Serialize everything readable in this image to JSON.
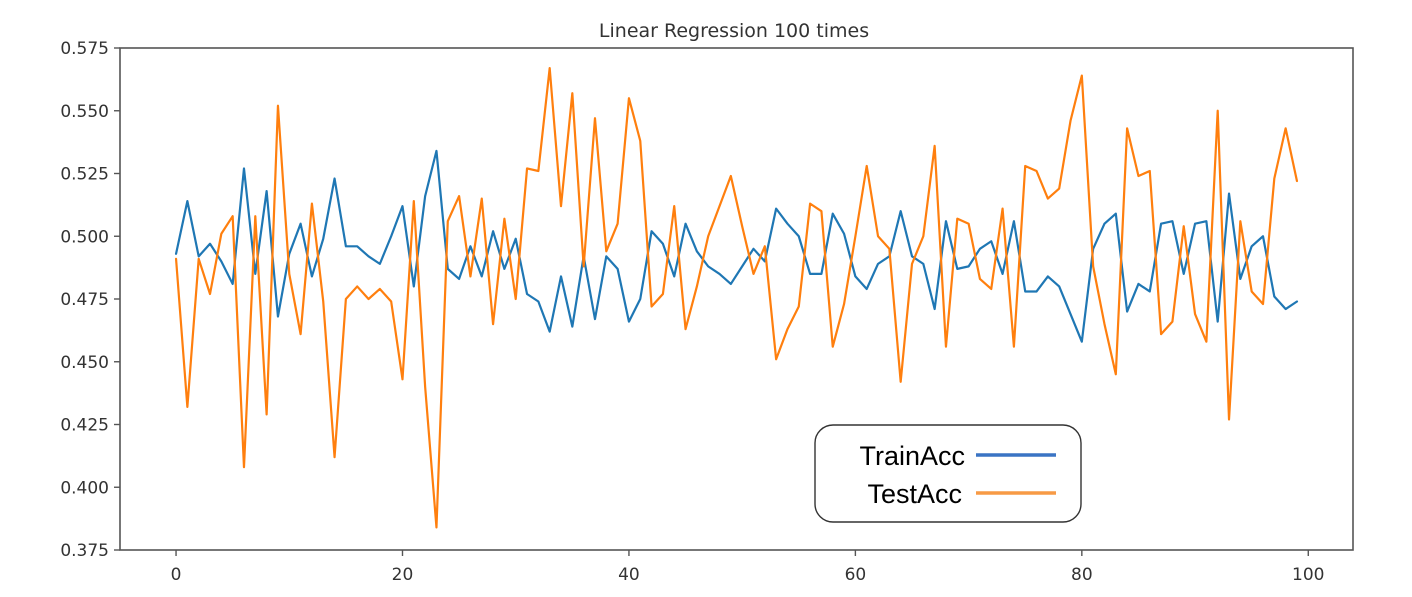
{
  "chart_data": {
    "type": "line",
    "title": "Linear Regression 100 times",
    "xlabel": "",
    "ylabel": "",
    "xlim": [
      -4.95,
      103.95
    ],
    "ylim": [
      0.375,
      0.575
    ],
    "xticks": [
      0,
      20,
      40,
      60,
      80,
      100
    ],
    "xtick_labels": [
      "0",
      "20",
      "40",
      "60",
      "80",
      "100"
    ],
    "yticks": [
      0.375,
      0.4,
      0.425,
      0.45,
      0.475,
      0.5,
      0.525,
      0.55,
      0.575
    ],
    "ytick_labels": [
      "0.375",
      "0.400",
      "0.425",
      "0.450",
      "0.475",
      "0.500",
      "0.525",
      "0.550",
      "0.575"
    ],
    "grid": false,
    "legend_position": "lower-right",
    "series": [
      {
        "name": "TrainAcc",
        "color": "#1f77b4",
        "legend_color": "#3a74c4",
        "values": [
          0.493,
          0.514,
          0.492,
          0.497,
          0.49,
          0.481,
          0.527,
          0.485,
          0.518,
          0.468,
          0.493,
          0.505,
          0.484,
          0.499,
          0.523,
          0.496,
          0.496,
          0.492,
          0.489,
          0.5,
          0.512,
          0.48,
          0.516,
          0.534,
          0.487,
          0.483,
          0.496,
          0.484,
          0.502,
          0.487,
          0.499,
          0.477,
          0.474,
          0.462,
          0.484,
          0.464,
          0.492,
          0.467,
          0.492,
          0.487,
          0.466,
          0.475,
          0.502,
          0.497,
          0.484,
          0.505,
          0.494,
          0.488,
          0.485,
          0.481,
          0.488,
          0.495,
          0.49,
          0.511,
          0.505,
          0.5,
          0.485,
          0.485,
          0.509,
          0.501,
          0.484,
          0.479,
          0.489,
          0.492,
          0.51,
          0.492,
          0.489,
          0.471,
          0.506,
          0.487,
          0.488,
          0.495,
          0.498,
          0.485,
          0.506,
          0.478,
          0.478,
          0.484,
          0.48,
          0.469,
          0.458,
          0.495,
          0.505,
          0.509,
          0.47,
          0.481,
          0.478,
          0.505,
          0.506,
          0.485,
          0.505,
          0.506,
          0.466,
          0.517,
          0.483,
          0.496,
          0.5,
          0.476,
          0.471,
          0.474
        ]
      },
      {
        "name": "TestAcc",
        "color": "#ff7f0e",
        "legend_color": "#f79a45",
        "values": [
          0.491,
          0.432,
          0.491,
          0.477,
          0.501,
          0.508,
          0.408,
          0.508,
          0.429,
          0.552,
          0.485,
          0.461,
          0.513,
          0.474,
          0.412,
          0.475,
          0.48,
          0.475,
          0.479,
          0.474,
          0.443,
          0.514,
          0.44,
          0.384,
          0.506,
          0.516,
          0.484,
          0.515,
          0.465,
          0.507,
          0.475,
          0.527,
          0.526,
          0.567,
          0.512,
          0.557,
          0.488,
          0.547,
          0.494,
          0.505,
          0.555,
          0.538,
          0.472,
          0.477,
          0.512,
          0.463,
          0.48,
          0.5,
          0.512,
          0.524,
          0.504,
          0.485,
          0.496,
          0.451,
          0.463,
          0.472,
          0.513,
          0.51,
          0.456,
          0.473,
          0.5,
          0.528,
          0.5,
          0.495,
          0.442,
          0.489,
          0.5,
          0.536,
          0.456,
          0.507,
          0.505,
          0.483,
          0.479,
          0.511,
          0.456,
          0.528,
          0.526,
          0.515,
          0.519,
          0.546,
          0.564,
          0.488,
          0.465,
          0.445,
          0.543,
          0.524,
          0.526,
          0.461,
          0.466,
          0.504,
          0.469,
          0.458,
          0.55,
          0.427,
          0.506,
          0.478,
          0.473,
          0.523,
          0.543,
          0.522
        ]
      }
    ]
  }
}
